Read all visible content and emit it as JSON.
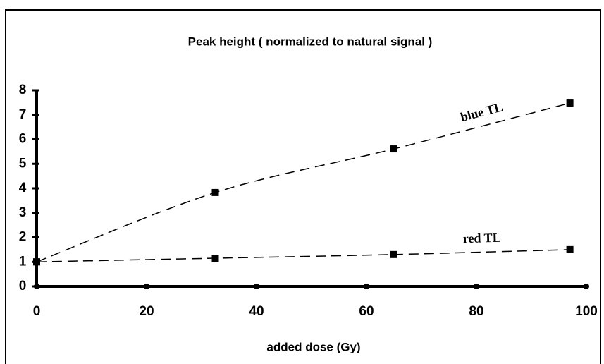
{
  "chart_data": {
    "type": "scatter",
    "title": "Peak height ( normalized to natural signal )",
    "x_label": "added dose (Gy)",
    "xlim": [
      0,
      100
    ],
    "xticks": [
      0,
      20,
      40,
      60,
      80,
      100
    ],
    "ylim": [
      0,
      8
    ],
    "yticks": [
      0,
      1,
      2,
      3,
      4,
      5,
      6,
      7,
      8
    ],
    "series": [
      {
        "name": "blue TL",
        "color": "#000000",
        "x": [
          0,
          32.5,
          65,
          97
        ],
        "values": [
          1,
          3.83,
          5.61,
          7.48
        ]
      },
      {
        "name": "red TL",
        "color": "#000000",
        "x": [
          0,
          32.5,
          65,
          97
        ],
        "values": [
          1,
          1.15,
          1.3,
          1.5
        ]
      }
    ]
  }
}
